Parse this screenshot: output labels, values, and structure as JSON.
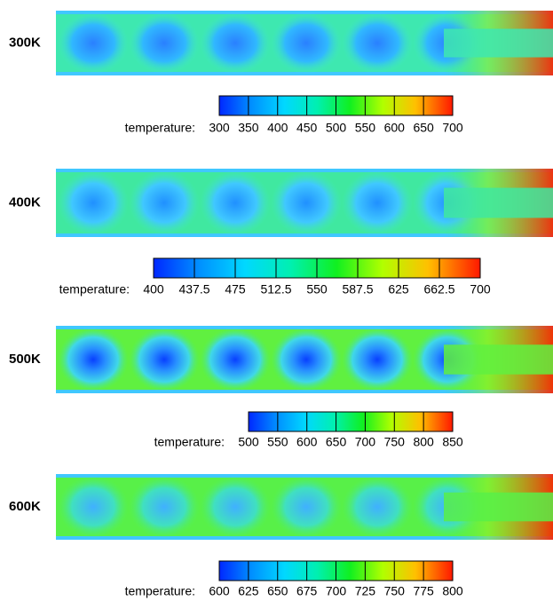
{
  "panels": [
    {
      "label": "300K",
      "colorbar": {
        "label": "temperature:",
        "ticks": [
          "300",
          "350",
          "400",
          "450",
          "500",
          "550",
          "600",
          "650",
          "700"
        ]
      }
    },
    {
      "label": "400K",
      "colorbar": {
        "label": "temperature:",
        "ticks": [
          "400",
          "437.5",
          "475",
          "512.5",
          "550",
          "587.5",
          "625",
          "662.5",
          "700"
        ]
      }
    },
    {
      "label": "500K",
      "colorbar": {
        "label": "temperature:",
        "ticks": [
          "500",
          "550",
          "600",
          "650",
          "700",
          "750",
          "800",
          "850"
        ]
      }
    },
    {
      "label": "600K",
      "colorbar": {
        "label": "temperature:",
        "ticks": [
          "600",
          "625",
          "650",
          "675",
          "700",
          "725",
          "750",
          "775",
          "800"
        ]
      }
    }
  ]
}
